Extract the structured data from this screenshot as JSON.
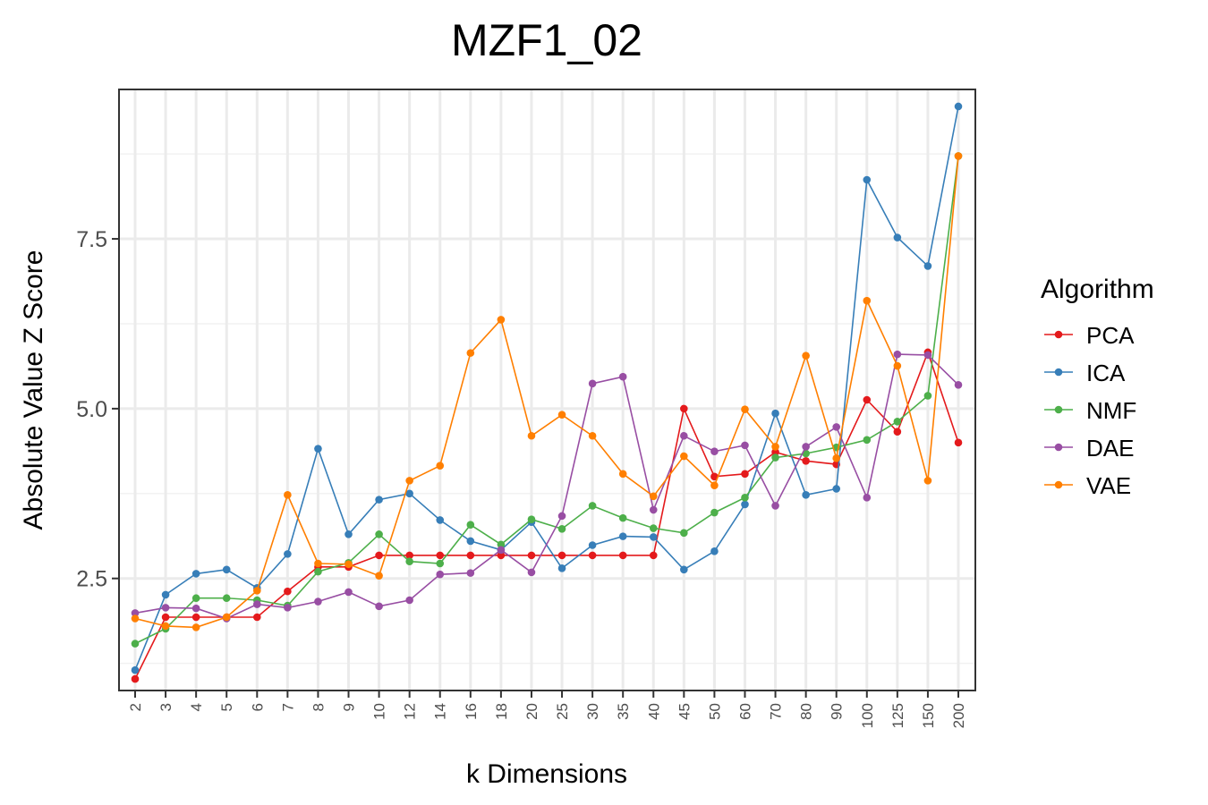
{
  "chart_data": {
    "type": "line",
    "title": "MZF1_02",
    "xlabel": "k Dimensions",
    "ylabel": "Absolute Value Z Score",
    "categories": [
      "2",
      "3",
      "4",
      "5",
      "6",
      "7",
      "8",
      "9",
      "10",
      "12",
      "14",
      "16",
      "18",
      "20",
      "25",
      "30",
      "35",
      "40",
      "45",
      "50",
      "60",
      "70",
      "80",
      "90",
      "100",
      "125",
      "150",
      "200"
    ],
    "ylim": [
      0.85,
      9.7
    ],
    "yticks": [
      2.5,
      5.0,
      7.5
    ],
    "ytick_labels": [
      "2.5",
      "5.0",
      "7.5"
    ],
    "grid": true,
    "legend_title": "Algorithm",
    "legend_position": "right",
    "series": [
      {
        "name": "PCA",
        "color": "#e41a1c",
        "values": [
          1.02,
          1.93,
          1.93,
          1.93,
          1.93,
          2.31,
          2.67,
          2.67,
          2.84,
          2.84,
          2.84,
          2.84,
          2.84,
          2.84,
          2.84,
          2.84,
          2.84,
          2.84,
          5.0,
          4.0,
          4.04,
          4.36,
          4.23,
          4.18,
          5.13,
          4.66,
          5.83,
          4.5
        ]
      },
      {
        "name": "ICA",
        "color": "#377eb8",
        "values": [
          1.15,
          2.26,
          2.57,
          2.63,
          2.36,
          2.86,
          4.41,
          3.15,
          3.66,
          3.75,
          3.36,
          3.05,
          2.92,
          3.33,
          2.65,
          2.99,
          3.12,
          3.11,
          2.63,
          2.9,
          3.59,
          4.93,
          3.73,
          3.82,
          8.37,
          7.52,
          7.1,
          9.45
        ]
      },
      {
        "name": "NMF",
        "color": "#4daf4a",
        "values": [
          1.54,
          1.76,
          2.21,
          2.21,
          2.18,
          2.1,
          2.6,
          2.73,
          3.15,
          2.75,
          2.72,
          3.29,
          3.0,
          3.37,
          3.23,
          3.57,
          3.39,
          3.24,
          3.17,
          3.47,
          3.69,
          4.28,
          4.34,
          4.43,
          4.54,
          4.81,
          5.19,
          8.72
        ]
      },
      {
        "name": "DAE",
        "color": "#984ea3",
        "values": [
          1.99,
          2.07,
          2.06,
          1.91,
          2.12,
          2.07,
          2.16,
          2.3,
          2.09,
          2.18,
          2.56,
          2.58,
          2.92,
          2.59,
          3.42,
          5.37,
          5.47,
          3.51,
          4.6,
          4.37,
          4.46,
          3.57,
          4.44,
          4.73,
          3.69,
          5.8,
          5.79,
          5.35
        ]
      },
      {
        "name": "VAE",
        "color": "#ff7f00",
        "values": [
          1.91,
          1.8,
          1.78,
          1.93,
          2.32,
          3.73,
          2.72,
          2.71,
          2.54,
          3.94,
          4.16,
          5.82,
          6.31,
          4.6,
          4.91,
          4.6,
          4.04,
          3.71,
          4.3,
          3.87,
          4.99,
          4.44,
          5.78,
          4.27,
          6.59,
          5.63,
          3.94,
          8.72
        ]
      }
    ]
  }
}
